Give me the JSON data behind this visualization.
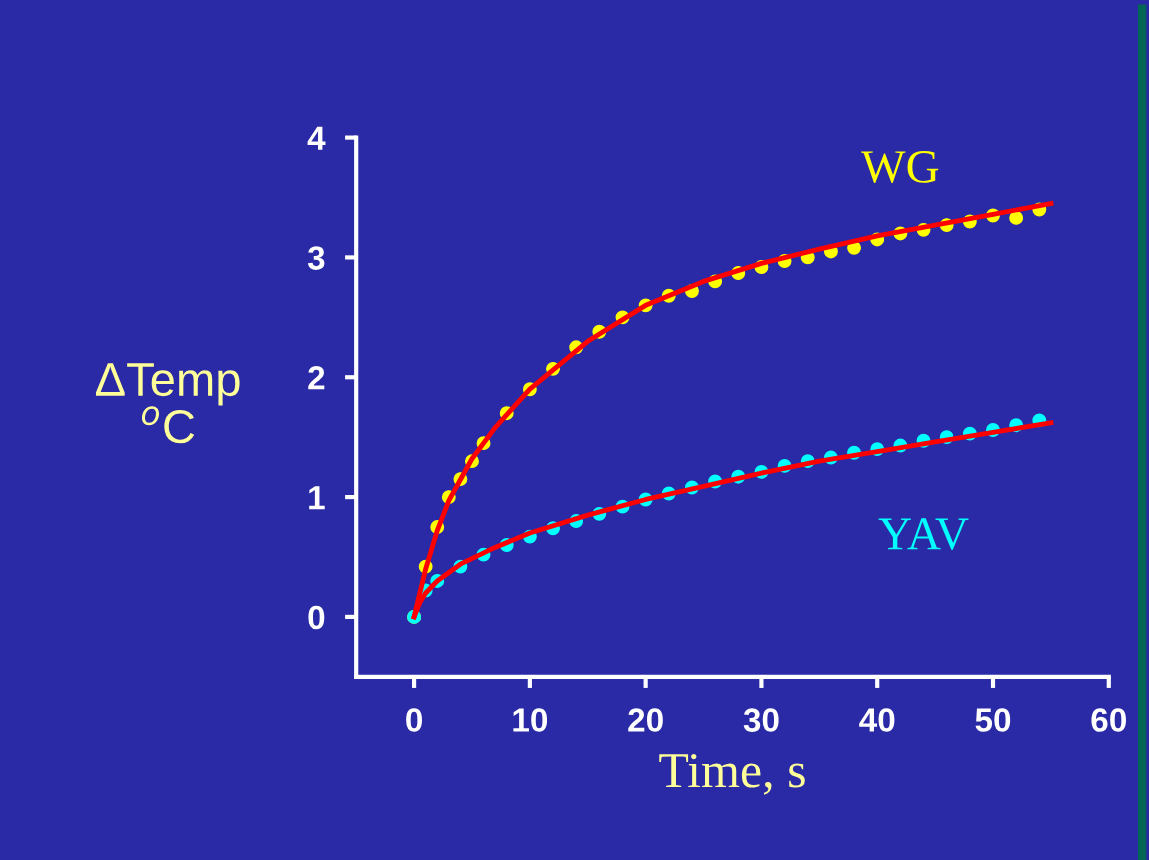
{
  "chart_data": {
    "type": "scatter",
    "xlabel": "Time, s",
    "ylabel": "ΔTemp\n$^{o}$C",
    "xlim": [
      -5,
      60
    ],
    "ylim": [
      -0.5,
      4
    ],
    "xticks": [
      0,
      10,
      20,
      30,
      40,
      50,
      60
    ],
    "yticks": [
      0,
      1,
      2,
      3,
      4
    ],
    "grid": false,
    "legend": false,
    "series": [
      {
        "name": "WG",
        "color": "#ffff00",
        "marker": "circle",
        "x": [
          0,
          1,
          2,
          3,
          4,
          5,
          6,
          8,
          10,
          12,
          14,
          16,
          18,
          20,
          22,
          24,
          26,
          28,
          30,
          32,
          34,
          36,
          38,
          40,
          42,
          44,
          46,
          48,
          50,
          52,
          54
        ],
        "values": [
          0,
          0.42,
          0.75,
          1.0,
          1.15,
          1.3,
          1.45,
          1.7,
          1.9,
          2.07,
          2.25,
          2.38,
          2.5,
          2.6,
          2.68,
          2.72,
          2.8,
          2.87,
          2.92,
          2.97,
          3.0,
          3.05,
          3.08,
          3.15,
          3.2,
          3.23,
          3.27,
          3.3,
          3.35,
          3.33,
          3.4
        ]
      },
      {
        "name": "YAV",
        "color": "#00ffff",
        "marker": "circle",
        "x": [
          0,
          1,
          2,
          4,
          6,
          8,
          10,
          12,
          14,
          16,
          18,
          20,
          22,
          24,
          26,
          28,
          30,
          32,
          34,
          36,
          38,
          40,
          42,
          44,
          46,
          48,
          50,
          52,
          54
        ],
        "values": [
          0,
          0.22,
          0.3,
          0.42,
          0.52,
          0.6,
          0.67,
          0.74,
          0.8,
          0.86,
          0.92,
          0.98,
          1.03,
          1.08,
          1.13,
          1.17,
          1.21,
          1.26,
          1.3,
          1.33,
          1.37,
          1.4,
          1.43,
          1.47,
          1.5,
          1.53,
          1.56,
          1.6,
          1.64
        ]
      },
      {
        "type": "line",
        "color": "#ff0000",
        "x": [
          0,
          0.5,
          1,
          2,
          3,
          5,
          7,
          10,
          15,
          20,
          25,
          30,
          35,
          40,
          45,
          50,
          55
        ],
        "values": [
          0,
          0.2,
          0.4,
          0.72,
          0.97,
          1.32,
          1.58,
          1.9,
          2.3,
          2.6,
          2.8,
          2.95,
          3.07,
          3.18,
          3.27,
          3.36,
          3.45
        ]
      },
      {
        "type": "line",
        "color": "#ff0000",
        "x": [
          0,
          0.5,
          1,
          2,
          4,
          7,
          10,
          15,
          20,
          25,
          30,
          35,
          40,
          45,
          50,
          55
        ],
        "values": [
          0,
          0.12,
          0.2,
          0.3,
          0.44,
          0.58,
          0.7,
          0.85,
          0.98,
          1.09,
          1.2,
          1.3,
          1.38,
          1.46,
          1.54,
          1.62
        ]
      }
    ]
  }
}
